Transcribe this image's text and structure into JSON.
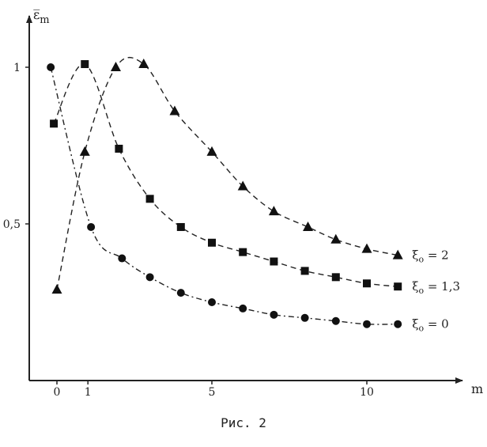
{
  "chart_data": {
    "type": "line",
    "ylabel": "ε̅",
    "ylabel_sub": "m",
    "xlabel": "m",
    "caption": "Рис. 2",
    "xlim": [
      -1,
      12
    ],
    "ylim": [
      0,
      1.2
    ],
    "x_ticks": [
      {
        "value": 0,
        "label": "0"
      },
      {
        "value": 1,
        "label": "1"
      },
      {
        "value": 5,
        "label": "5"
      },
      {
        "value": 10,
        "label": "10"
      }
    ],
    "y_ticks": [
      {
        "value": 0.5,
        "label": "0,5"
      },
      {
        "value": 1,
        "label": "1"
      }
    ],
    "series": [
      {
        "name": "ξ_o = 2",
        "label_main": "ξ",
        "label_sub": "o",
        "label_rest": " = 2",
        "marker": "triangle",
        "line_style": "dashed",
        "x": [
          0,
          0.9,
          1.9,
          2.8,
          3.8,
          5,
          6,
          7,
          8.1,
          9,
          10,
          11
        ],
        "y": [
          0.29,
          0.73,
          1.0,
          1.01,
          0.86,
          0.73,
          0.62,
          0.54,
          0.49,
          0.45,
          0.42,
          0.4
        ]
      },
      {
        "name": "ξ_o = 1,3",
        "label_main": "ξ",
        "label_sub": "o",
        "label_rest": " = 1,3",
        "marker": "square",
        "line_style": "dashed",
        "x": [
          -0.1,
          0.9,
          2,
          3,
          4,
          5,
          6,
          7,
          8,
          9,
          10,
          11
        ],
        "y": [
          0.82,
          1.01,
          0.74,
          0.58,
          0.49,
          0.44,
          0.41,
          0.38,
          0.35,
          0.33,
          0.31,
          0.3
        ]
      },
      {
        "name": "ξ_o = 0",
        "label_main": "ξ",
        "label_sub": "o",
        "label_rest": " = 0",
        "marker": "circle",
        "line_style": "dash-dot",
        "x": [
          -0.2,
          1.1,
          2.1,
          3,
          4,
          5,
          6,
          7,
          8,
          9,
          10,
          11
        ],
        "y": [
          1.0,
          0.49,
          0.39,
          0.33,
          0.28,
          0.25,
          0.23,
          0.21,
          0.2,
          0.19,
          0.18,
          0.18
        ]
      }
    ]
  }
}
